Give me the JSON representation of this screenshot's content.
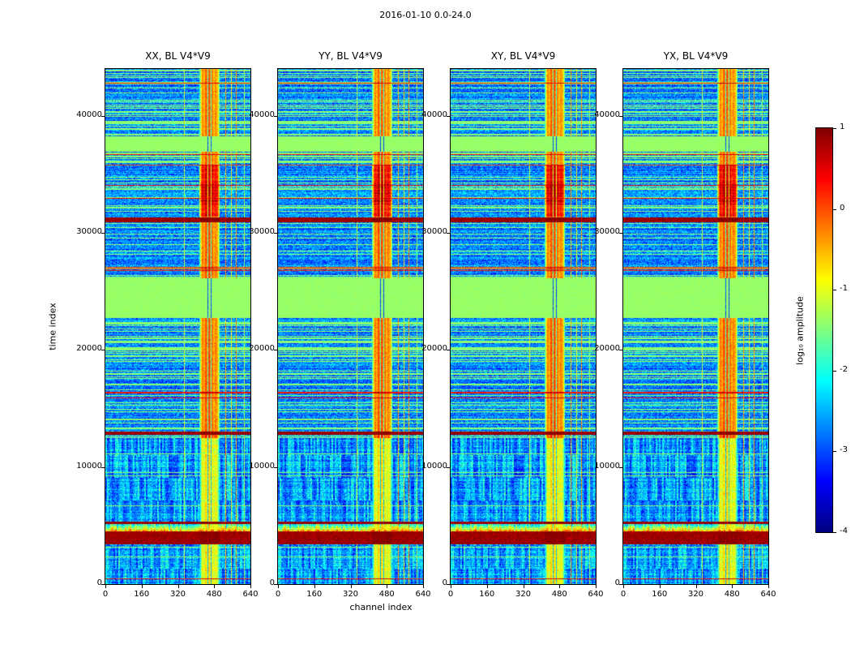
{
  "chart_data": {
    "type": "heatmap",
    "figure_title": "2016-01-10 0.0-24.0",
    "panels": [
      {
        "title": "XX, BL V4*V9"
      },
      {
        "title": "YY, BL V4*V9"
      },
      {
        "title": "XY, BL V4*V9"
      },
      {
        "title": "YX, BL V4*V9"
      }
    ],
    "xlabel": "channel index",
    "ylabel": "time index",
    "x_range": [
      0,
      640
    ],
    "y_range": [
      0,
      44000
    ],
    "x_ticks": [
      0,
      160,
      320,
      480,
      640
    ],
    "x_tick_labels": [
      "0",
      "160",
      "320",
      "480",
      "640"
    ],
    "y_ticks": [
      0,
      10000,
      20000,
      30000,
      40000
    ],
    "y_tick_labels": [
      "0",
      "10000",
      "20000",
      "30000",
      "40000"
    ],
    "colorbar": {
      "label": "log₁₀ amplitude",
      "ticks": [
        1,
        0,
        -1,
        -2,
        -3,
        -4
      ],
      "tick_labels": [
        "1",
        "0",
        "-1",
        "-2",
        "-3",
        "-4"
      ],
      "range": [
        -4,
        1
      ],
      "colormap": "jet"
    },
    "features": {
      "background_value": -3.0,
      "green_flag_value": -1.4,
      "band_channels": [
        415,
        505
      ],
      "band_gap_channels": [
        452,
        468
      ],
      "band_hot_time": [
        31400,
        35800
      ],
      "band_hot_core_time": [
        32400,
        34400
      ],
      "green_blocks_time": [
        [
          22700,
          26100
        ],
        [
          36900,
          38250
        ]
      ],
      "red_rows_time": [
        [
          3400,
          4500
        ],
        [
          30900,
          31350
        ],
        [
          12750,
          13050
        ],
        [
          5150,
          5320
        ]
      ],
      "bottom_region_tmax": 12500,
      "narrow_lines": [
        {
          "ch": 350,
          "v": -1.2
        },
        {
          "ch": 532,
          "v": -0.45
        },
        {
          "ch": 556,
          "v": -0.9
        },
        {
          "ch": 577,
          "v": -0.35
        },
        {
          "ch": 612,
          "v": -1.35
        }
      ]
    }
  }
}
